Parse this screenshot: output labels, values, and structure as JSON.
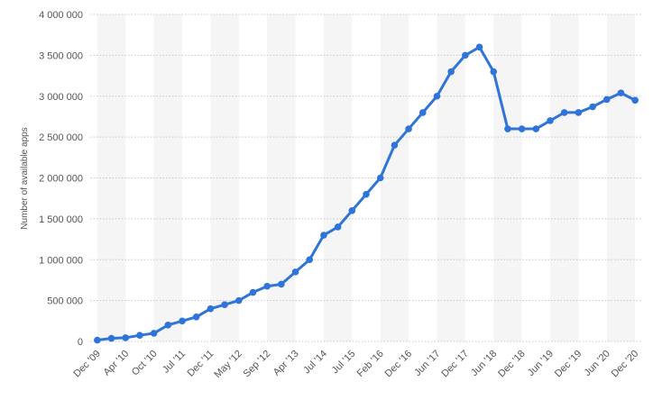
{
  "chart_data": {
    "type": "line",
    "y_label": "Number of available apps",
    "categories": [
      "Dec '09",
      null,
      "Apr '10",
      null,
      "Oct '10",
      null,
      "Jul '11",
      null,
      "Dec '11",
      null,
      "May '12",
      null,
      "Sep '12",
      null,
      "Apr '13",
      null,
      "Jul '14",
      null,
      "Jul '15",
      null,
      "Feb '16",
      null,
      "Dec '16",
      null,
      "Jun '17",
      null,
      "Dec '17",
      null,
      "Jun '18",
      null,
      "Dec '18",
      null,
      "Jun '19",
      null,
      "Dec '19",
      null,
      "Jun '20",
      null,
      "Dec '20"
    ],
    "values": [
      16000,
      38000,
      45000,
      75000,
      100000,
      200000,
      250000,
      300000,
      400000,
      450000,
      500000,
      600000,
      675000,
      700000,
      850000,
      1000000,
      1300000,
      1400000,
      1600000,
      1800000,
      2000000,
      2400000,
      2600000,
      2800000,
      3000000,
      3300000,
      3500000,
      3600000,
      3300000,
      2600000,
      2600000,
      2600000,
      2700000,
      2800000,
      2800000,
      2870000,
      2960000,
      3040000,
      2950000
    ],
    "color": "#2f74d8",
    "ylim": [
      0,
      4000000
    ],
    "yticks": [
      0,
      {
        "value": 500000,
        "label": "500 000"
      },
      {
        "value": 1000000,
        "label": "1 000 000"
      },
      {
        "value": 1500000,
        "label": "1 500 000"
      },
      {
        "value": 2000000,
        "label": "2 000 000"
      },
      {
        "value": 2500000,
        "label": "2 500 000"
      },
      {
        "value": 3000000,
        "label": "3 000 000"
      },
      {
        "value": 3500000,
        "label": "3 500 000"
      },
      {
        "value": 4000000,
        "label": "4 000 000"
      }
    ],
    "grid": true
  }
}
